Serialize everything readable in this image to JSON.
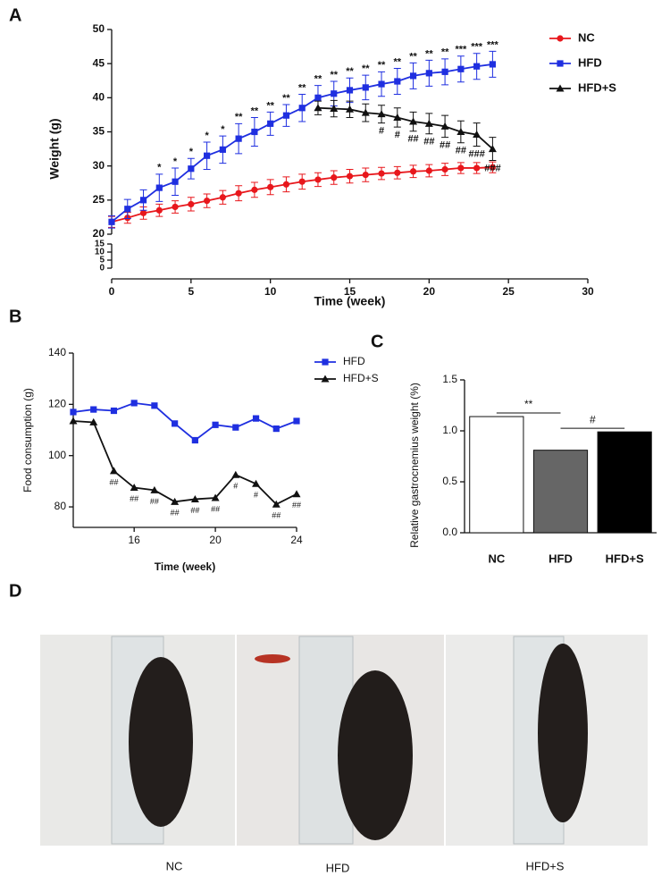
{
  "panel_labels": [
    "A",
    "B",
    "C",
    "D"
  ],
  "photo_captions": [
    "NC",
    "HFD",
    "HFD+S"
  ],
  "chart_data": [
    {
      "type": "line",
      "y_label": "Weight (g)",
      "x_label": "Time (week)",
      "x": [
        0,
        1,
        2,
        3,
        4,
        5,
        6,
        7,
        8,
        9,
        10,
        11,
        12,
        13,
        14,
        15,
        16,
        17,
        18,
        19,
        20,
        21,
        22,
        23,
        24
      ],
      "xlim": [
        0,
        30
      ],
      "xticks": [
        0,
        5,
        10,
        15,
        20,
        25,
        30
      ],
      "ylim": [
        20,
        50
      ],
      "yticks": [
        20,
        25,
        30,
        35,
        40,
        45,
        50
      ],
      "ylim_lower": [
        0,
        15
      ],
      "yticks_lower": [
        0,
        5,
        10,
        15
      ],
      "legend": "upper right outside",
      "series": [
        {
          "name": "NC",
          "color": "#e8171c",
          "marker": "circle",
          "values": [
            21.8,
            22.4,
            23.1,
            23.5,
            24.0,
            24.4,
            24.9,
            25.4,
            26.0,
            26.5,
            26.9,
            27.3,
            27.7,
            28.0,
            28.3,
            28.5,
            28.7,
            28.9,
            29.0,
            29.2,
            29.3,
            29.5,
            29.7,
            29.7,
            29.8
          ],
          "errors": [
            0.8,
            0.8,
            0.9,
            0.9,
            0.9,
            1.0,
            1.0,
            1.0,
            1.1,
            1.1,
            1.1,
            1.1,
            1.1,
            1.0,
            1.0,
            1.0,
            1.0,
            0.9,
            0.9,
            0.9,
            0.9,
            0.9,
            0.8,
            0.8,
            0.8
          ]
        },
        {
          "name": "HFD",
          "color": "#1f2fe0",
          "marker": "square",
          "values": [
            21.8,
            23.7,
            25.0,
            26.8,
            27.7,
            29.6,
            31.5,
            32.4,
            34.0,
            35.0,
            36.2,
            37.4,
            38.5,
            40.0,
            40.6,
            41.1,
            41.5,
            42.0,
            42.4,
            43.2,
            43.6,
            43.8,
            44.2,
            44.6,
            44.9
          ],
          "errors": [
            0.9,
            1.4,
            1.5,
            2.0,
            2.0,
            1.5,
            2.0,
            2.0,
            2.2,
            2.1,
            1.7,
            1.6,
            2.0,
            1.8,
            1.8,
            1.8,
            1.8,
            1.8,
            1.9,
            1.9,
            1.9,
            1.9,
            1.9,
            1.9,
            1.9
          ],
          "annotations": [
            null,
            null,
            null,
            "*",
            "*",
            "*",
            "*",
            "*",
            "**",
            "**",
            "**",
            "**",
            "**",
            "**",
            "**",
            "**",
            "**",
            "**",
            "**",
            "**",
            "**",
            "**",
            "***",
            "***",
            "***"
          ]
        },
        {
          "name": "HFD+S",
          "color": "#111111",
          "marker": "triangle",
          "values": [
            null,
            null,
            null,
            null,
            null,
            null,
            null,
            null,
            null,
            null,
            null,
            null,
            null,
            38.5,
            38.4,
            38.3,
            37.8,
            37.6,
            37.1,
            36.5,
            36.2,
            35.8,
            35.0,
            34.6,
            32.5
          ],
          "errors": [
            null,
            null,
            null,
            null,
            null,
            null,
            null,
            null,
            null,
            null,
            null,
            null,
            null,
            1.0,
            1.2,
            1.2,
            1.3,
            1.3,
            1.4,
            1.4,
            1.5,
            1.6,
            1.6,
            1.7,
            1.7
          ],
          "annotations": [
            null,
            null,
            null,
            null,
            null,
            null,
            null,
            null,
            null,
            null,
            null,
            null,
            null,
            null,
            null,
            null,
            null,
            "#",
            "#",
            "##",
            "##",
            "##",
            "##",
            "###",
            "###"
          ]
        }
      ]
    },
    {
      "type": "line",
      "y_label": "Food consumption (g)",
      "x_label": "Time (week)",
      "x": [
        13,
        14,
        15,
        16,
        17,
        18,
        19,
        20,
        21,
        22,
        23,
        24
      ],
      "xlim": [
        13,
        24
      ],
      "xticks": [
        16,
        20,
        24
      ],
      "ylim": [
        72,
        140
      ],
      "yticks": [
        80,
        100,
        120,
        140
      ],
      "legend": "right",
      "series": [
        {
          "name": "HFD",
          "color": "#1f2fe0",
          "marker": "square",
          "values": [
            117,
            118,
            117.5,
            120.5,
            119.5,
            112.5,
            106,
            112,
            111,
            114.5,
            110.5,
            113.5
          ]
        },
        {
          "name": "HFD+S",
          "color": "#111111",
          "marker": "triangle",
          "values": [
            113.5,
            113,
            94,
            87.5,
            86.5,
            82,
            83,
            83.5,
            92.5,
            89,
            81,
            85
          ],
          "annotations": [
            null,
            null,
            "##",
            "##",
            "##",
            "##",
            "##",
            "##",
            "#",
            "#",
            "##",
            "##"
          ]
        }
      ]
    },
    {
      "type": "bar",
      "y_label": "Relative gastrocnemius weight (%)",
      "categories": [
        "NC",
        "HFD",
        "HFD+S"
      ],
      "values": [
        1.14,
        0.81,
        0.99
      ],
      "colors": [
        "#ffffff",
        "#666666",
        "#000000"
      ],
      "ylim": [
        0,
        1.5
      ],
      "yticks": [
        {
          "value": 0,
          "label": "0.0"
        },
        0.5,
        {
          "value": 1,
          "label": "1.0"
        },
        1.5
      ],
      "brackets": [
        {
          "label": "**"
        },
        {
          "label": "#"
        }
      ]
    }
  ]
}
